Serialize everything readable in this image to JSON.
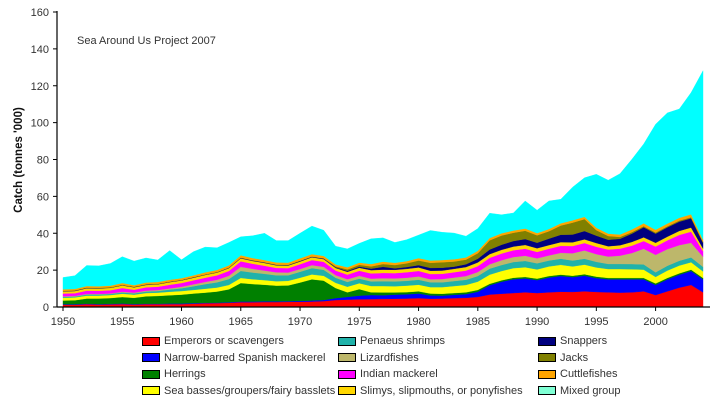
{
  "chart_data": {
    "type": "area",
    "stacked": true,
    "title": "Sea Around Us Project 2007",
    "xlabel": "",
    "ylabel": "Catch (tonnes '000)",
    "xlim": [
      1950,
      2004
    ],
    "ylim": [
      0,
      160
    ],
    "yticks": [
      0,
      20,
      40,
      60,
      80,
      100,
      120,
      140,
      160
    ],
    "xticks": [
      1950,
      1955,
      1960,
      1965,
      1970,
      1975,
      1980,
      1985,
      1990,
      1995,
      2000
    ],
    "grid": false,
    "legend_position": "bottom",
    "x": [
      1950,
      1951,
      1952,
      1953,
      1954,
      1955,
      1956,
      1957,
      1958,
      1959,
      1960,
      1961,
      1962,
      1963,
      1964,
      1965,
      1966,
      1967,
      1968,
      1969,
      1970,
      1971,
      1972,
      1973,
      1974,
      1975,
      1976,
      1977,
      1978,
      1979,
      1980,
      1981,
      1982,
      1983,
      1984,
      1985,
      1986,
      1987,
      1988,
      1989,
      1990,
      1991,
      1992,
      1993,
      1994,
      1995,
      1996,
      1997,
      1998,
      1999,
      2000,
      2001,
      2002,
      2003,
      2004
    ],
    "series": [
      {
        "name": "Emperors or scavengers",
        "color": "#FF0000",
        "values": [
          1.2,
          1.2,
          1.5,
          1.3,
          1.4,
          1.6,
          1.3,
          1.5,
          1.5,
          1.6,
          1.6,
          1.8,
          2.0,
          2.1,
          2.3,
          2.6,
          2.6,
          2.7,
          2.7,
          2.8,
          2.9,
          3.0,
          3.2,
          3.8,
          4.0,
          4.2,
          4.3,
          4.4,
          4.5,
          4.6,
          4.8,
          4.5,
          4.6,
          4.8,
          5.0,
          5.5,
          6.8,
          7.2,
          7.6,
          8.0,
          7.6,
          8.0,
          8.3,
          8.2,
          8.5,
          8.2,
          8.0,
          7.8,
          8.0,
          8.5,
          6.5,
          8.5,
          10.5,
          12.0,
          8.0
        ]
      },
      {
        "name": "Narrow-barred Spanish mackerel",
        "color": "#0000FF",
        "values": [
          0.3,
          0.3,
          0.3,
          0.3,
          0.3,
          0.3,
          0.3,
          0.3,
          0.3,
          0.3,
          0.3,
          0.3,
          0.3,
          0.3,
          0.3,
          0.4,
          0.4,
          0.4,
          0.4,
          0.4,
          0.4,
          0.5,
          0.6,
          1.0,
          1.5,
          2.0,
          2.2,
          2.0,
          2.2,
          2.3,
          2.5,
          1.8,
          1.6,
          1.8,
          2.0,
          2.8,
          5.0,
          6.5,
          7.5,
          7.5,
          7.0,
          8.0,
          8.5,
          8.0,
          8.5,
          7.5,
          7.0,
          7.2,
          7.0,
          6.5,
          5.5,
          6.5,
          7.0,
          7.5,
          7.0
        ]
      },
      {
        "name": "Herrings",
        "color": "#008000",
        "values": [
          2.0,
          2.2,
          2.8,
          3.0,
          3.2,
          3.5,
          3.4,
          4.0,
          4.2,
          4.5,
          4.8,
          5.2,
          5.5,
          6.0,
          7.0,
          10.0,
          9.5,
          9.0,
          8.5,
          8.5,
          10.0,
          11.5,
          10.5,
          5.5,
          2.5,
          3.5,
          1.5,
          1.5,
          1.2,
          1.2,
          1.2,
          1.0,
          1.0,
          1.0,
          1.0,
          1.0,
          0.8,
          0.8,
          0.8,
          0.8,
          0.8,
          0.8,
          0.8,
          0.8,
          0.8,
          0.8,
          0.8,
          0.8,
          0.8,
          0.8,
          0.8,
          0.8,
          0.8,
          0.8,
          0.8
        ]
      },
      {
        "name": "Sea basses/groupers/fairy basslets",
        "color": "#FFFF00",
        "values": [
          1.5,
          1.5,
          1.6,
          1.6,
          1.6,
          1.8,
          1.7,
          1.8,
          1.8,
          1.9,
          2.0,
          2.0,
          2.1,
          2.2,
          2.4,
          2.8,
          2.6,
          2.5,
          2.4,
          2.5,
          2.6,
          2.7,
          2.6,
          2.8,
          3.0,
          3.2,
          3.4,
          3.5,
          3.4,
          3.5,
          3.6,
          3.5,
          3.6,
          3.8,
          4.0,
          4.5,
          5.0,
          5.0,
          5.2,
          5.3,
          5.0,
          5.2,
          5.3,
          5.0,
          5.2,
          5.0,
          4.8,
          4.8,
          4.7,
          4.5,
          3.5,
          4.0,
          4.2,
          4.0,
          3.5
        ]
      },
      {
        "name": "Penaeus shrimps",
        "color": "#20B2AA",
        "values": [
          0.5,
          0.5,
          0.6,
          0.6,
          0.6,
          0.7,
          0.7,
          0.8,
          0.9,
          1.2,
          1.5,
          2.0,
          2.5,
          2.8,
          3.2,
          3.8,
          3.6,
          3.4,
          3.2,
          3.0,
          3.2,
          3.4,
          3.3,
          2.8,
          2.6,
          2.5,
          2.5,
          2.6,
          2.6,
          2.6,
          2.7,
          2.6,
          2.6,
          2.7,
          2.8,
          3.0,
          3.2,
          3.3,
          3.3,
          3.4,
          3.3,
          3.2,
          3.3,
          3.2,
          3.2,
          3.0,
          2.8,
          2.8,
          2.8,
          2.8,
          2.5,
          2.6,
          2.6,
          2.6,
          2.5
        ]
      },
      {
        "name": "Lizardfishes",
        "color": "#BDB76B",
        "values": [
          0.3,
          0.3,
          0.3,
          0.3,
          0.3,
          0.4,
          0.4,
          0.5,
          0.5,
          0.6,
          0.8,
          1.0,
          1.2,
          1.4,
          1.8,
          2.2,
          2.0,
          1.8,
          1.6,
          1.5,
          1.5,
          1.6,
          1.6,
          1.4,
          1.5,
          1.5,
          1.5,
          1.6,
          1.6,
          1.7,
          1.8,
          1.7,
          1.8,
          1.9,
          2.0,
          2.2,
          2.4,
          2.6,
          2.7,
          2.8,
          2.7,
          2.8,
          3.2,
          4.0,
          4.5,
          4.2,
          4.0,
          4.5,
          6.0,
          8.5,
          9.5,
          9.0,
          8.5,
          8.0,
          5.5
        ]
      },
      {
        "name": "Indian mackerel",
        "color": "#FF00FF",
        "values": [
          1.5,
          1.5,
          1.8,
          1.7,
          1.7,
          2.0,
          1.6,
          1.8,
          1.8,
          2.0,
          2.0,
          2.2,
          2.3,
          2.4,
          2.6,
          3.0,
          2.8,
          2.6,
          2.4,
          2.4,
          2.6,
          2.8,
          2.7,
          2.5,
          2.5,
          2.8,
          2.8,
          2.9,
          2.9,
          3.0,
          3.0,
          2.8,
          2.8,
          2.9,
          3.0,
          3.2,
          3.5,
          3.6,
          3.7,
          3.8,
          3.5,
          3.6,
          3.8,
          3.9,
          4.0,
          4.0,
          3.8,
          3.8,
          4.0,
          4.2,
          4.5,
          4.8,
          5.5,
          6.0,
          3.0
        ]
      },
      {
        "name": "Slimys, slipmouths, or ponyfishes",
        "color": "#FFD700",
        "values": [
          1.2,
          1.2,
          1.3,
          1.3,
          1.3,
          1.4,
          1.3,
          1.3,
          1.3,
          1.4,
          1.4,
          1.4,
          1.5,
          1.5,
          1.5,
          1.6,
          1.5,
          1.5,
          1.4,
          1.4,
          1.5,
          1.5,
          1.5,
          1.4,
          1.5,
          1.6,
          1.8,
          1.8,
          1.8,
          1.8,
          1.9,
          1.8,
          1.8,
          1.8,
          1.9,
          2.0,
          2.0,
          2.0,
          2.0,
          2.1,
          2.0,
          2.0,
          2.0,
          2.0,
          2.0,
          2.0,
          1.8,
          1.8,
          2.0,
          2.0,
          2.0,
          2.0,
          2.2,
          2.2,
          1.5
        ]
      },
      {
        "name": "Snappers",
        "color": "#000080",
        "values": [
          0.2,
          0.2,
          0.2,
          0.2,
          0.2,
          0.2,
          0.2,
          0.2,
          0.2,
          0.2,
          0.2,
          0.2,
          0.2,
          0.2,
          0.2,
          0.3,
          0.3,
          0.3,
          0.3,
          0.3,
          0.3,
          0.3,
          0.3,
          0.4,
          0.5,
          0.6,
          0.8,
          1.5,
          0.8,
          1.0,
          1.2,
          1.5,
          1.5,
          1.2,
          1.5,
          2.0,
          2.5,
          2.8,
          3.0,
          3.2,
          3.0,
          3.5,
          4.0,
          4.2,
          4.5,
          4.0,
          3.5,
          3.5,
          4.5,
          5.5,
          5.0,
          5.0,
          5.0,
          5.0,
          3.0
        ]
      },
      {
        "name": "Jacks",
        "color": "#808000",
        "values": [
          0.1,
          0.1,
          0.1,
          0.1,
          0.1,
          0.1,
          0.1,
          0.1,
          0.1,
          0.1,
          0.1,
          0.1,
          0.1,
          0.1,
          0.1,
          0.1,
          0.1,
          0.1,
          0.1,
          0.1,
          0.1,
          0.1,
          0.1,
          0.5,
          0.8,
          1.0,
          1.2,
          1.5,
          1.8,
          2.0,
          2.5,
          2.8,
          3.0,
          2.8,
          2.5,
          3.0,
          5.0,
          5.0,
          4.5,
          4.5,
          4.0,
          4.0,
          5.0,
          6.5,
          6.5,
          3.0,
          2.0,
          1.0,
          0.8,
          0.6,
          0.6,
          0.6,
          0.6,
          0.6,
          0.5
        ]
      },
      {
        "name": "Cuttlefishes",
        "color": "#FFA500",
        "values": [
          0.8,
          0.8,
          0.9,
          0.9,
          0.9,
          1.0,
          0.9,
          1.0,
          1.0,
          1.0,
          1.0,
          1.0,
          1.1,
          1.1,
          1.2,
          1.3,
          1.2,
          1.2,
          1.2,
          1.2,
          1.3,
          1.3,
          1.3,
          1.0,
          1.2,
          1.2,
          1.3,
          1.3,
          1.2,
          1.2,
          1.3,
          1.2,
          1.2,
          1.2,
          1.2,
          1.3,
          1.2,
          1.2,
          1.2,
          1.2,
          1.2,
          1.2,
          1.2,
          1.2,
          1.2,
          1.3,
          1.3,
          1.3,
          1.5,
          1.5,
          1.5,
          1.5,
          1.5,
          1.6,
          1.2
        ]
      },
      {
        "name": "Mixed group",
        "color": "#00FFFF",
        "legend_color": "#7FFFD4",
        "values": [
          6.4,
          7.2,
          11.1,
          11.0,
          12.0,
          14.3,
          13.0,
          13.3,
          11.9,
          15.8,
          9.9,
          12.8,
          13.7,
          12.0,
          12.4,
          10.0,
          12.0,
          14.5,
          11.8,
          11.9,
          13.6,
          15.2,
          13.9,
          9.9,
          9.9,
          10.4,
          13.7,
          12.9,
          11.0,
          11.6,
          12.5,
          16.3,
          15.0,
          14.2,
          11.5,
          12.0,
          13.5,
          10.0,
          9.5,
          14.9,
          12.4,
          15.2,
          13.0,
          18.0,
          21.2,
          29.0,
          29.0,
          33.0,
          38.0,
          43.0,
          57.2,
          60.0,
          59.0,
          66.0,
          91.6
        ]
      }
    ]
  },
  "legend": {
    "items": [
      {
        "label": "Emperors or scavengers",
        "color": "#FF0000"
      },
      {
        "label": "Penaeus shrimps",
        "color": "#20B2AA"
      },
      {
        "label": "Snappers",
        "color": "#000080"
      },
      {
        "label": "Narrow-barred Spanish mackerel",
        "color": "#0000FF"
      },
      {
        "label": "Lizardfishes",
        "color": "#BDB76B"
      },
      {
        "label": "Jacks",
        "color": "#808000"
      },
      {
        "label": "Herrings",
        "color": "#008000"
      },
      {
        "label": "Indian mackerel",
        "color": "#FF00FF"
      },
      {
        "label": "Cuttlefishes",
        "color": "#FFA500"
      },
      {
        "label": "Sea basses/groupers/fairy basslets",
        "color": "#FFFF00"
      },
      {
        "label": "Slimys, slipmouths, or ponyfishes",
        "color": "#FFD700"
      },
      {
        "label": "Mixed group",
        "color": "#7FFFD4"
      }
    ]
  }
}
